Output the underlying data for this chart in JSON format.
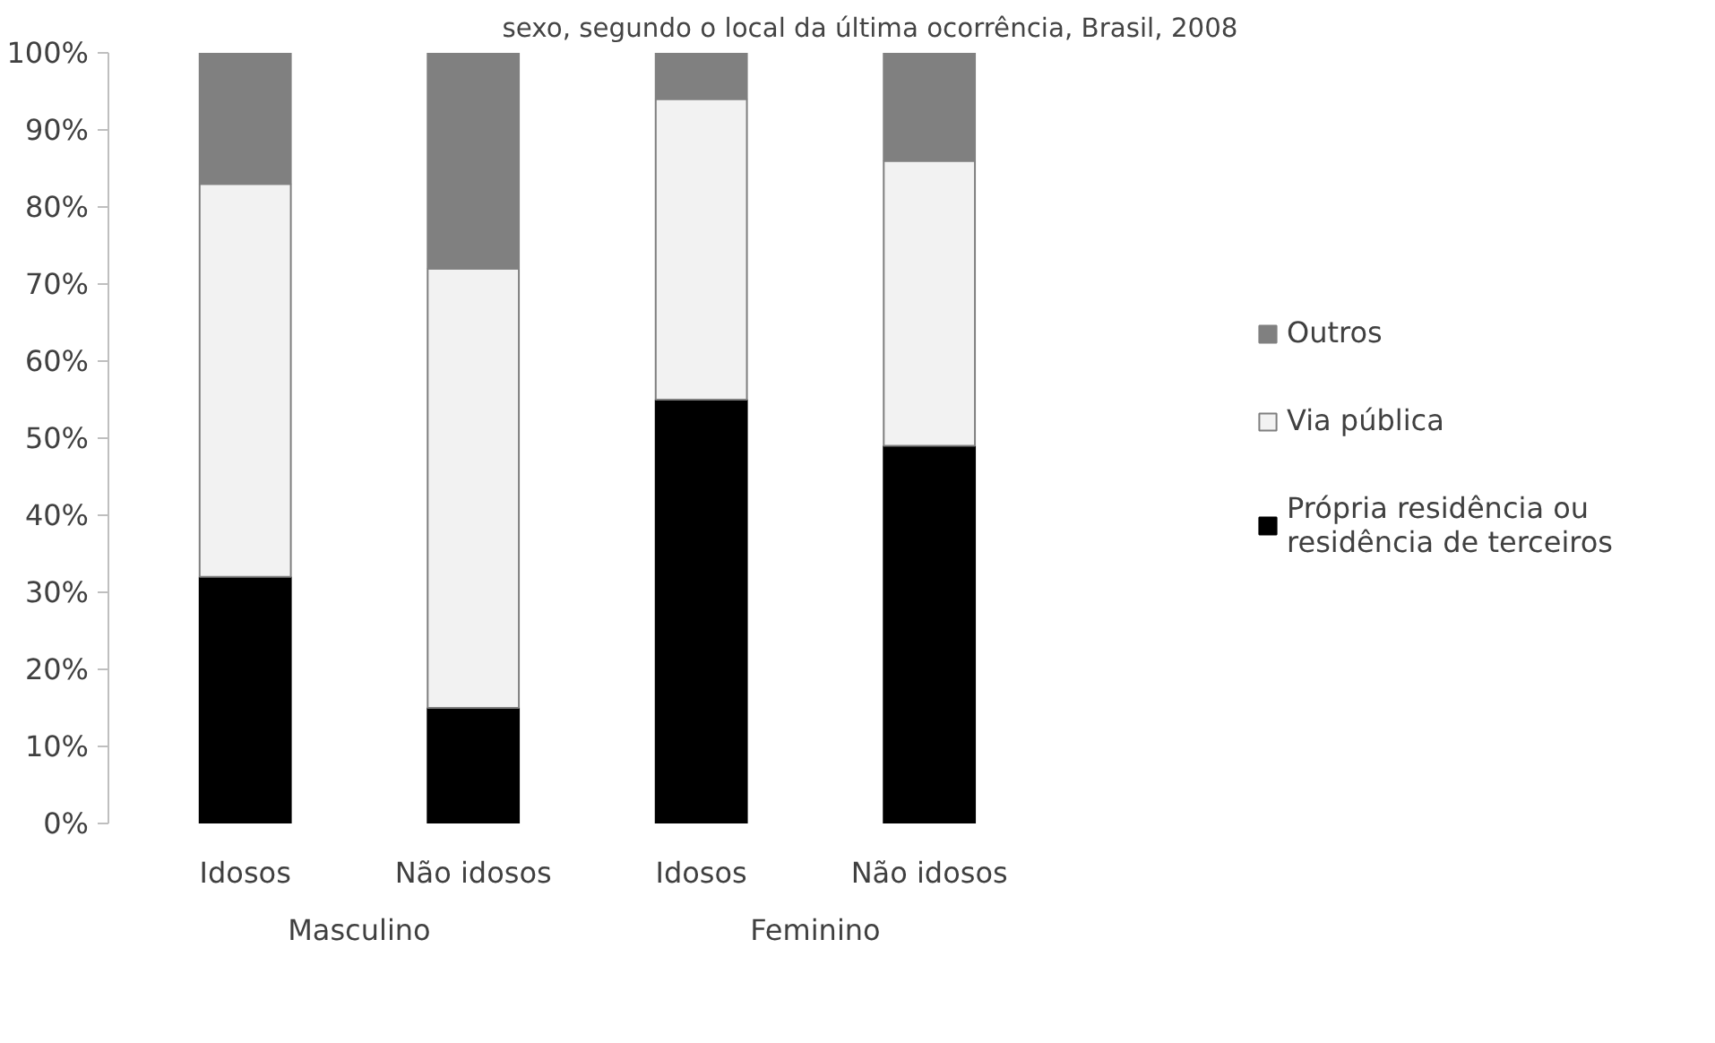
{
  "chart_data": {
    "type": "bar",
    "title": "sexo, segundo o local da última ocorrência, Brasil, 2008",
    "stacked": true,
    "categories": [
      "Idosos",
      "Não idosos",
      "Idosos",
      "Não idosos"
    ],
    "annotations": [
      "Masculino",
      "Feminino"
    ],
    "series": [
      {
        "name": "Própria residência ou residência de terceiros",
        "color": "#000000",
        "values": [
          32,
          15,
          55,
          49
        ]
      },
      {
        "name": "Via pública",
        "color": "#f2f2f2",
        "values": [
          51,
          57,
          39,
          37
        ]
      },
      {
        "name": "Outros",
        "color": "#808080",
        "values": [
          17,
          28,
          6,
          14
        ]
      }
    ],
    "ylim": [
      0,
      100
    ],
    "yticks": [
      {
        "value": 0,
        "label": "0%"
      },
      {
        "value": 10,
        "label": "10%"
      },
      {
        "value": 20,
        "label": "20%"
      },
      {
        "value": 30,
        "label": "30%"
      },
      {
        "value": 40,
        "label": "40%"
      },
      {
        "value": 50,
        "label": "50%"
      },
      {
        "value": 60,
        "label": "60%"
      },
      {
        "value": 70,
        "label": "70%"
      },
      {
        "value": 80,
        "label": "80%"
      },
      {
        "value": 90,
        "label": "90%"
      },
      {
        "value": 100,
        "label": "100%"
      }
    ],
    "grid": false,
    "legend": "right"
  }
}
